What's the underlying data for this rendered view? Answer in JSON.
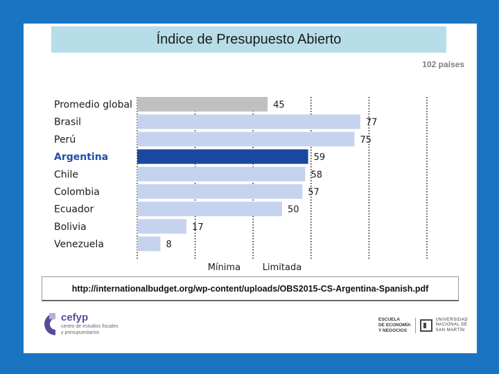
{
  "title": "Índice de Presupuesto Abierto",
  "countries_note": "102 países",
  "source_url": "http://internationalbudget.org/wp-content/uploads/OBS2015-CS-Argentina-Spanish.pdf",
  "chart_data": {
    "type": "bar",
    "orientation": "horizontal",
    "categories": [
      "Promedio global",
      "Brasil",
      "Perú",
      "Argentina",
      "Chile",
      "Colombia",
      "Ecuador",
      "Bolivia",
      "Venezuela"
    ],
    "values": [
      45,
      77,
      75,
      59,
      58,
      57,
      50,
      17,
      8
    ],
    "xlim": [
      0,
      100
    ],
    "grid": "vertical-dotted",
    "level_labels": [
      "Mínima",
      "Limitada"
    ],
    "colors": {
      "average": "#c0c0c0",
      "default": "#c6d3ee",
      "highlight": "#1a48a0"
    },
    "highlight_category": "Argentina"
  },
  "logos": {
    "cefyp_name": "cefyp",
    "cefyp_tagline_1": "centro de estudios fiscales",
    "cefyp_tagline_2": "y presupuestarios",
    "escuela_1": "ESCUELA",
    "escuela_2": "DE ECONOMÍA",
    "escuela_3": "Y NEGOCIOS",
    "unsam_1": "UNIVERSIDAD",
    "unsam_2": "NACIONAL DE",
    "unsam_3": "SAN MARTÍN"
  }
}
